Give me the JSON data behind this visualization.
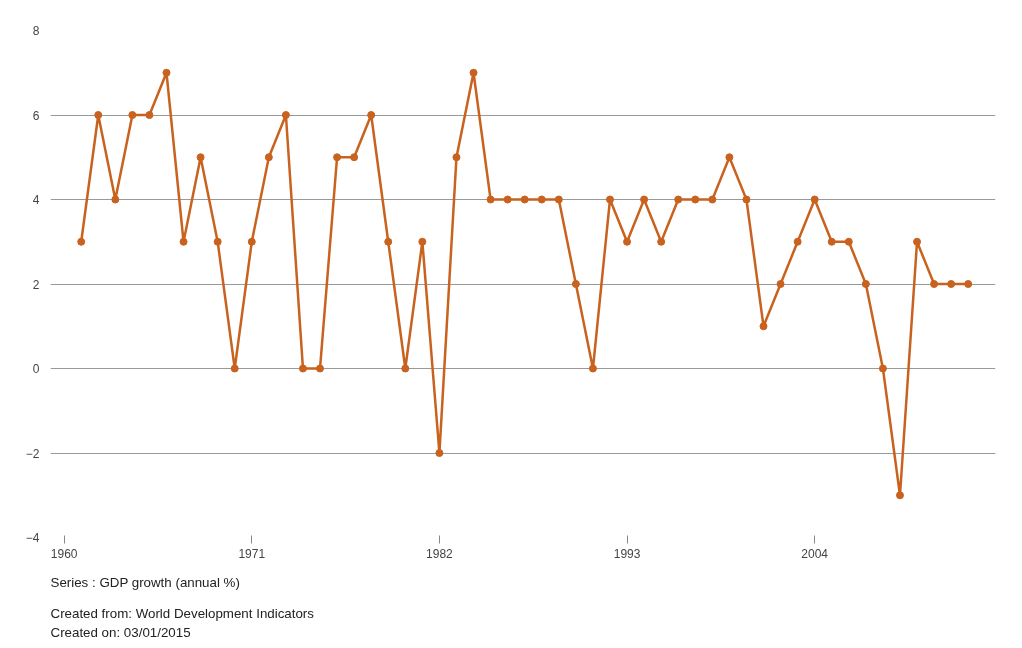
{
  "chart_data": {
    "type": "line",
    "x": [
      1961,
      1962,
      1963,
      1964,
      1965,
      1966,
      1967,
      1968,
      1969,
      1970,
      1971,
      1972,
      1973,
      1974,
      1975,
      1976,
      1977,
      1978,
      1979,
      1980,
      1981,
      1982,
      1983,
      1984,
      1985,
      1986,
      1987,
      1988,
      1989,
      1990,
      1991,
      1992,
      1993,
      1994,
      1995,
      1996,
      1997,
      1998,
      1999,
      2000,
      2001,
      2002,
      2003,
      2004,
      2005,
      2006,
      2007,
      2008,
      2009,
      2010,
      2011,
      2012,
      2013
    ],
    "series": [
      {
        "color": "#c8621e",
        "values": [
          3,
          6,
          4,
          6,
          6,
          7,
          3,
          5,
          3,
          0,
          3,
          5,
          6,
          0,
          0,
          5,
          5,
          6,
          3,
          0,
          3,
          -2,
          5,
          7,
          4,
          4,
          4,
          4,
          4,
          2,
          0,
          4,
          3,
          4,
          3,
          4,
          4,
          4,
          5,
          4,
          1,
          2,
          3,
          4,
          3,
          3,
          2,
          0,
          -3,
          3,
          2,
          2,
          2
        ]
      }
    ],
    "xlim": [
      1959.2,
      2014.6
    ],
    "xticks": [
      1960,
      1971,
      1982,
      1993,
      2004
    ],
    "ylim": [
      -4,
      8
    ],
    "yticks": [
      -4,
      -2,
      0,
      2,
      4,
      6,
      8
    ],
    "grid": "y",
    "marker": "circle",
    "line_style": "solid",
    "annotations": [
      "Series : GDP growth (annual %)",
      "Created from: World Development Indicators",
      "Created on: 03/01/2015"
    ]
  }
}
